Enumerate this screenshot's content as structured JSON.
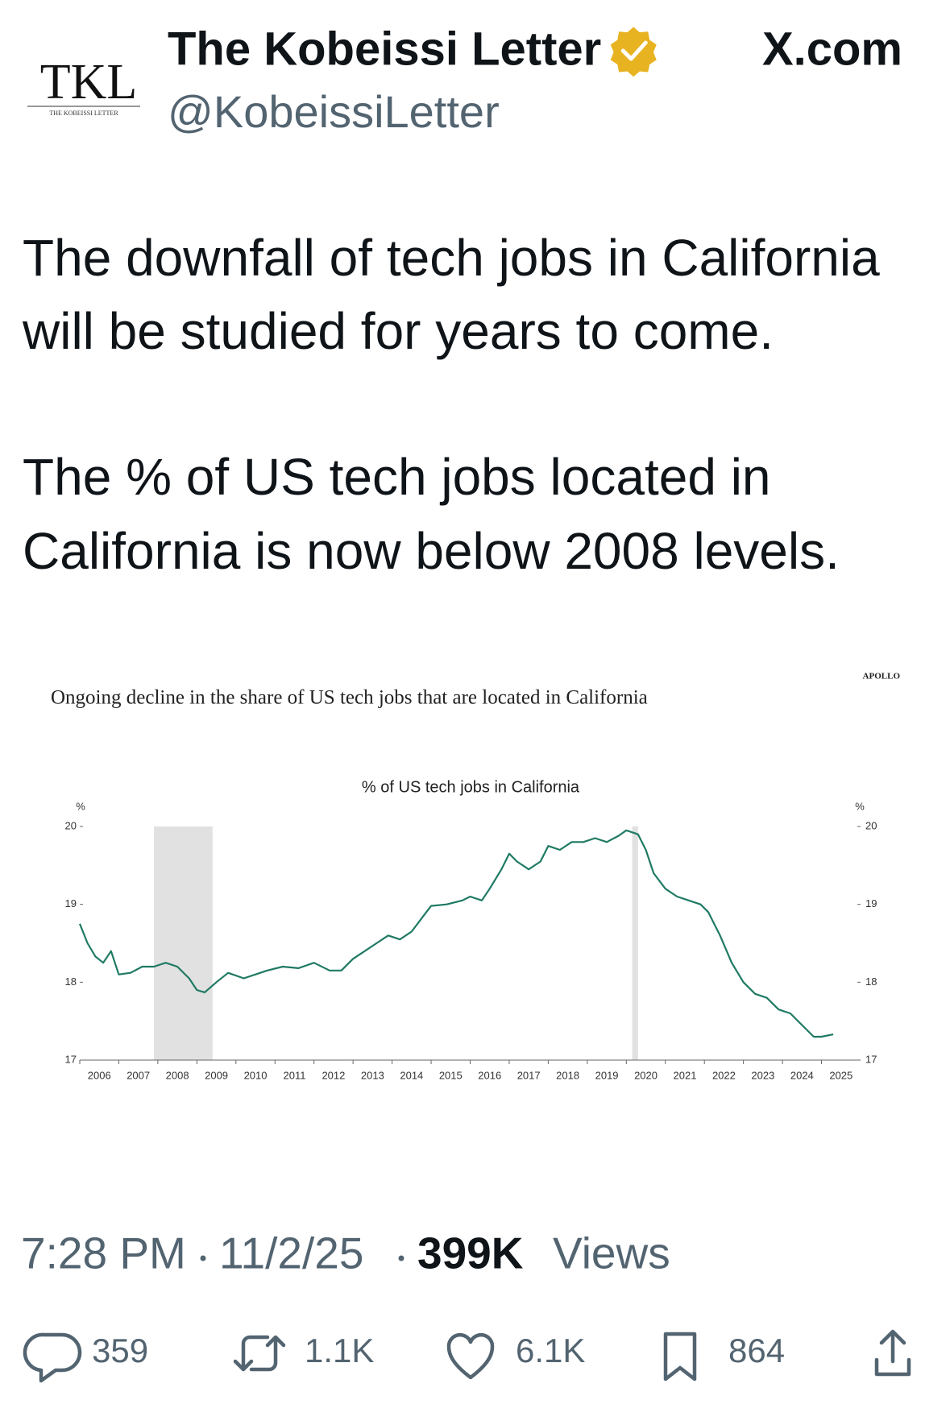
{
  "header": {
    "logo": "TKL",
    "logo_caption": "THE KOBEISSI LETTER",
    "name": "The Kobeissi Letter",
    "handle": "@KobeissiLetter",
    "site": "X.com"
  },
  "tweet": {
    "paragraphs": [
      [
        "The downfall of tech jobs in California",
        "will be studied for years to come."
      ],
      [
        "The % of US tech jobs located in",
        "California is now below 2008 levels."
      ]
    ]
  },
  "chart_data": {
    "type": "line",
    "title": "Ongoing decline in the share of US tech jobs that are located in California",
    "subtitle": "% of US tech jobs in California",
    "source": "APOLLO",
    "y_unit": "%",
    "y2_unit": "%",
    "color": "#1f7a64",
    "x": [
      2006.0,
      2006.2,
      2006.4,
      2006.6,
      2006.8,
      2007.0,
      2007.3,
      2007.6,
      2007.9,
      2008.2,
      2008.5,
      2008.8,
      2009.0,
      2009.2,
      2009.5,
      2009.8,
      2010.2,
      2010.5,
      2010.8,
      2011.2,
      2011.6,
      2012.0,
      2012.4,
      2012.7,
      2013.0,
      2013.3,
      2013.6,
      2013.9,
      2014.2,
      2014.5,
      2014.8,
      2015.0,
      2015.4,
      2015.8,
      2016.0,
      2016.3,
      2016.5,
      2016.8,
      2017.0,
      2017.2,
      2017.5,
      2017.8,
      2018.0,
      2018.3,
      2018.6,
      2018.9,
      2019.2,
      2019.5,
      2019.8,
      2020.0,
      2020.3,
      2020.5,
      2020.7,
      2021.0,
      2021.3,
      2021.6,
      2021.9,
      2022.1,
      2022.4,
      2022.7,
      2023.0,
      2023.3,
      2023.6,
      2023.9,
      2024.2,
      2024.5,
      2024.8,
      2025.0,
      2025.3
    ],
    "values": [
      18.75,
      18.5,
      18.33,
      18.25,
      18.4,
      18.1,
      18.12,
      18.2,
      18.2,
      18.25,
      18.2,
      18.05,
      17.9,
      17.87,
      18.0,
      18.12,
      18.05,
      18.1,
      18.15,
      18.2,
      18.18,
      18.25,
      18.15,
      18.15,
      18.3,
      18.4,
      18.5,
      18.6,
      18.55,
      18.65,
      18.85,
      18.98,
      19.0,
      19.05,
      19.1,
      19.05,
      19.2,
      19.45,
      19.65,
      19.55,
      19.45,
      19.55,
      19.75,
      19.7,
      19.8,
      19.8,
      19.85,
      19.8,
      19.88,
      19.95,
      19.9,
      19.7,
      19.4,
      19.2,
      19.1,
      19.05,
      19.0,
      18.9,
      18.6,
      18.25,
      18.0,
      17.85,
      17.8,
      17.65,
      17.6,
      17.45,
      17.3,
      17.3,
      17.33
    ],
    "shaded_regions": [
      {
        "start": 2007.9,
        "end": 2009.4
      },
      {
        "start": 2020.15,
        "end": 2020.3
      }
    ],
    "xlim": [
      2006,
      2026
    ],
    "xticks": [
      2006,
      2007,
      2008,
      2009,
      2010,
      2011,
      2012,
      2013,
      2014,
      2015,
      2016,
      2017,
      2018,
      2019,
      2020,
      2021,
      2022,
      2023,
      2024,
      2025
    ],
    "ylim": [
      17,
      20
    ],
    "yticks": [
      17,
      18,
      19,
      20
    ],
    "y2lim": [
      17,
      20
    ],
    "y2ticks": [
      17,
      18,
      19,
      20
    ]
  },
  "footer": {
    "time": "7:28 PM",
    "date": "11/2/25",
    "views_count": "399K",
    "views_label": "Views",
    "actions": {
      "replies": "359",
      "reposts": "1.1K",
      "likes": "6.1K",
      "bookmarks": "864"
    }
  }
}
